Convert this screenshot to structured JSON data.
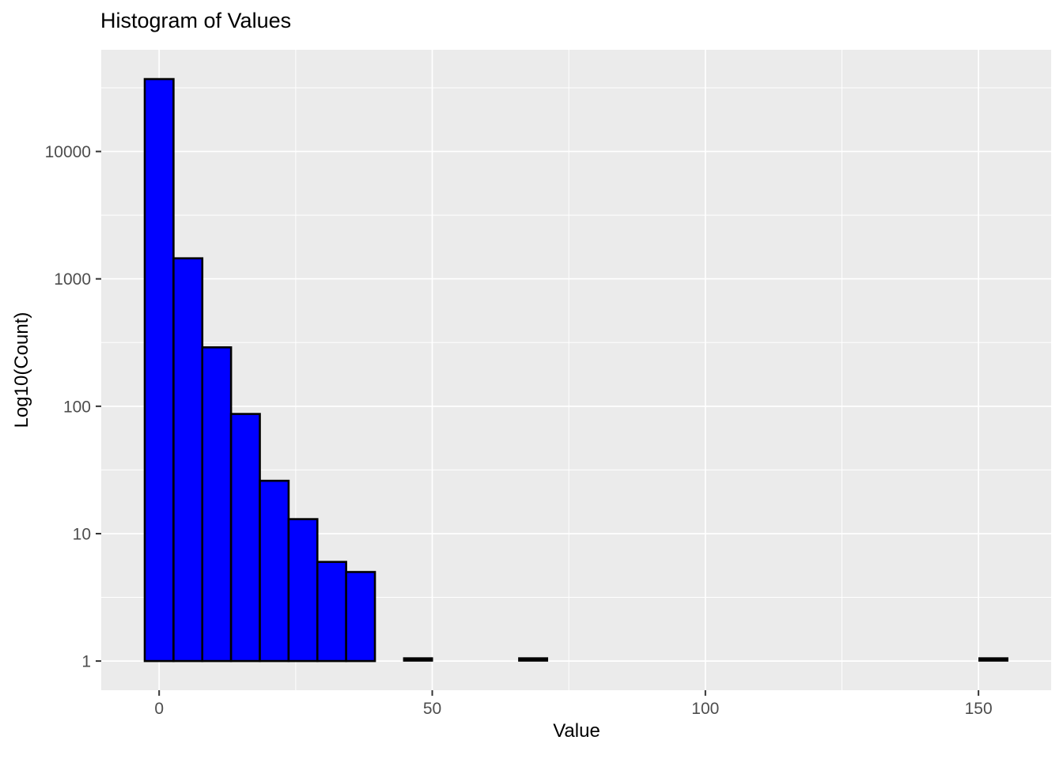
{
  "chart_data": {
    "type": "bar",
    "subtype": "histogram",
    "title": "Histogram of Values",
    "xlabel": "Value",
    "ylabel": "Log10(Count)",
    "y_scale": "log10",
    "grid": true,
    "legend": "none",
    "x_ticks": [
      0,
      50,
      100,
      150
    ],
    "y_ticks": [
      1,
      10,
      100,
      1000,
      10000
    ],
    "x_range": [
      -10.6,
      163.3
    ],
    "y_log_range": [
      -0.229,
      4.798
    ],
    "bin_width": 5.27,
    "bars": [
      {
        "center": 0,
        "count": 37000
      },
      {
        "center": 5.27,
        "count": 1450
      },
      {
        "center": 10.53,
        "count": 290
      },
      {
        "center": 15.8,
        "count": 87
      },
      {
        "center": 21.07,
        "count": 26
      },
      {
        "center": 26.33,
        "count": 13
      },
      {
        "center": 31.6,
        "count": 6
      },
      {
        "center": 36.87,
        "count": 5
      },
      {
        "center": 47.4,
        "count": 1
      },
      {
        "center": 68.47,
        "count": 1
      },
      {
        "center": 152.73,
        "count": 1
      }
    ],
    "colors": {
      "bar_fill": "#0000FF",
      "bar_stroke": "#000000",
      "panel_bg": "#EBEBEB",
      "grid_line": "#FFFFFF",
      "tick_mark": "#333333",
      "tick_label": "#4D4D4D",
      "title_color": "#000000"
    }
  }
}
